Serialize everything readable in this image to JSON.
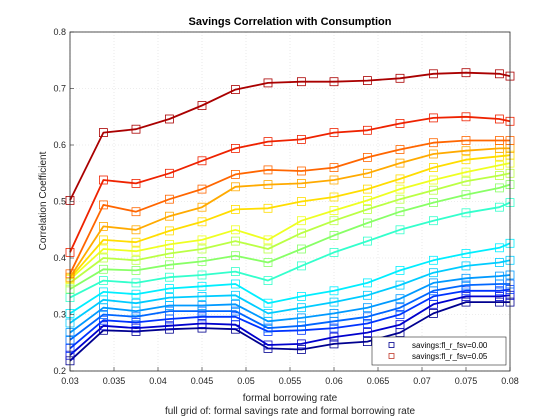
{
  "chart_data": {
    "type": "line",
    "title": "Savings Correlation with Consumption",
    "xlabel": "formal borrowing rate",
    "ylabel": "Correlation Coefficient",
    "caption": "full grid of: formal savings rate and formal borrowing rate",
    "xlim": [
      0.03,
      0.08
    ],
    "ylim": [
      0.2,
      0.8
    ],
    "x_ticks": [
      "0.03",
      "0.035",
      "0.04",
      "0.045",
      "0.05",
      "0.055",
      "0.06",
      "0.065",
      "0.07",
      "0.075",
      "0.08"
    ],
    "y_ticks": [
      "0.2",
      "0.3",
      "0.4",
      "0.5",
      "0.6",
      "0.7",
      "0.8"
    ],
    "grid": true,
    "legend_position": "bottom-right",
    "legend": [
      {
        "label": "savings:fl_r_fsv=0.00",
        "color": "#00008f"
      },
      {
        "label": "savings:fl_r_fsv=0.05",
        "color": "#c0392b"
      }
    ],
    "x": [
      0.03,
      0.0338,
      0.0375,
      0.0413,
      0.045,
      0.0488,
      0.0525,
      0.0563,
      0.06,
      0.0638,
      0.0675,
      0.0713,
      0.075,
      0.0788,
      0.08
    ],
    "series": [
      {
        "color": "#00008f",
        "values": [
          0.218,
          0.272,
          0.27,
          0.274,
          0.276,
          0.274,
          0.24,
          0.238,
          0.248,
          0.252,
          0.268,
          0.302,
          0.322,
          0.322,
          0.322
        ]
      },
      {
        "color": "#0000cd",
        "values": [
          0.228,
          0.28,
          0.276,
          0.28,
          0.284,
          0.282,
          0.246,
          0.248,
          0.26,
          0.268,
          0.282,
          0.318,
          0.332,
          0.332,
          0.334
        ]
      },
      {
        "color": "#0033ff",
        "values": [
          0.24,
          0.29,
          0.286,
          0.292,
          0.296,
          0.296,
          0.27,
          0.272,
          0.276,
          0.284,
          0.3,
          0.332,
          0.342,
          0.342,
          0.344
        ]
      },
      {
        "color": "#0066ff",
        "values": [
          0.255,
          0.3,
          0.296,
          0.306,
          0.306,
          0.306,
          0.276,
          0.28,
          0.288,
          0.296,
          0.312,
          0.342,
          0.352,
          0.354,
          0.354
        ]
      },
      {
        "color": "#0099ff",
        "values": [
          0.268,
          0.312,
          0.306,
          0.316,
          0.316,
          0.318,
          0.288,
          0.294,
          0.302,
          0.312,
          0.328,
          0.356,
          0.364,
          0.368,
          0.37
        ]
      },
      {
        "color": "#00ccff",
        "values": [
          0.285,
          0.326,
          0.32,
          0.33,
          0.332,
          0.334,
          0.302,
          0.312,
          0.322,
          0.334,
          0.352,
          0.374,
          0.386,
          0.392,
          0.396
        ]
      },
      {
        "color": "#00eeff",
        "values": [
          0.302,
          0.34,
          0.336,
          0.346,
          0.35,
          0.354,
          0.32,
          0.332,
          0.342,
          0.356,
          0.378,
          0.396,
          0.408,
          0.418,
          0.426
        ]
      },
      {
        "color": "#33ffcc",
        "values": [
          0.33,
          0.36,
          0.356,
          0.366,
          0.37,
          0.376,
          0.36,
          0.386,
          0.41,
          0.43,
          0.45,
          0.466,
          0.48,
          0.49,
          0.498
        ]
      },
      {
        "color": "#88ff66",
        "values": [
          0.345,
          0.38,
          0.378,
          0.388,
          0.394,
          0.404,
          0.392,
          0.416,
          0.44,
          0.462,
          0.482,
          0.498,
          0.512,
          0.524,
          0.53
        ]
      },
      {
        "color": "#bbff44",
        "values": [
          0.356,
          0.4,
          0.396,
          0.408,
          0.416,
          0.43,
          0.416,
          0.444,
          0.466,
          0.486,
          0.504,
          0.52,
          0.536,
          0.546,
          0.55
        ]
      },
      {
        "color": "#eeff22",
        "values": [
          0.362,
          0.416,
          0.412,
          0.424,
          0.432,
          0.45,
          0.432,
          0.466,
          0.484,
          0.502,
          0.522,
          0.538,
          0.552,
          0.564,
          0.568
        ]
      },
      {
        "color": "#ffdd00",
        "values": [
          0.364,
          0.432,
          0.428,
          0.448,
          0.464,
          0.486,
          0.488,
          0.5,
          0.508,
          0.522,
          0.54,
          0.56,
          0.574,
          0.58,
          0.582
        ]
      },
      {
        "color": "#ffaa00",
        "values": [
          0.366,
          0.456,
          0.45,
          0.474,
          0.49,
          0.526,
          0.53,
          0.532,
          0.538,
          0.55,
          0.568,
          0.584,
          0.59,
          0.594,
          0.594
        ]
      },
      {
        "color": "#ff6600",
        "values": [
          0.372,
          0.494,
          0.482,
          0.504,
          0.522,
          0.548,
          0.556,
          0.554,
          0.56,
          0.578,
          0.592,
          0.604,
          0.608,
          0.608,
          0.608
        ]
      },
      {
        "color": "#ee2200",
        "values": [
          0.41,
          0.538,
          0.532,
          0.55,
          0.572,
          0.594,
          0.606,
          0.61,
          0.622,
          0.626,
          0.638,
          0.648,
          0.65,
          0.646,
          0.642
        ]
      },
      {
        "color": "#aa0000",
        "values": [
          0.502,
          0.622,
          0.628,
          0.646,
          0.67,
          0.698,
          0.71,
          0.712,
          0.712,
          0.714,
          0.718,
          0.726,
          0.728,
          0.726,
          0.722
        ]
      }
    ]
  }
}
